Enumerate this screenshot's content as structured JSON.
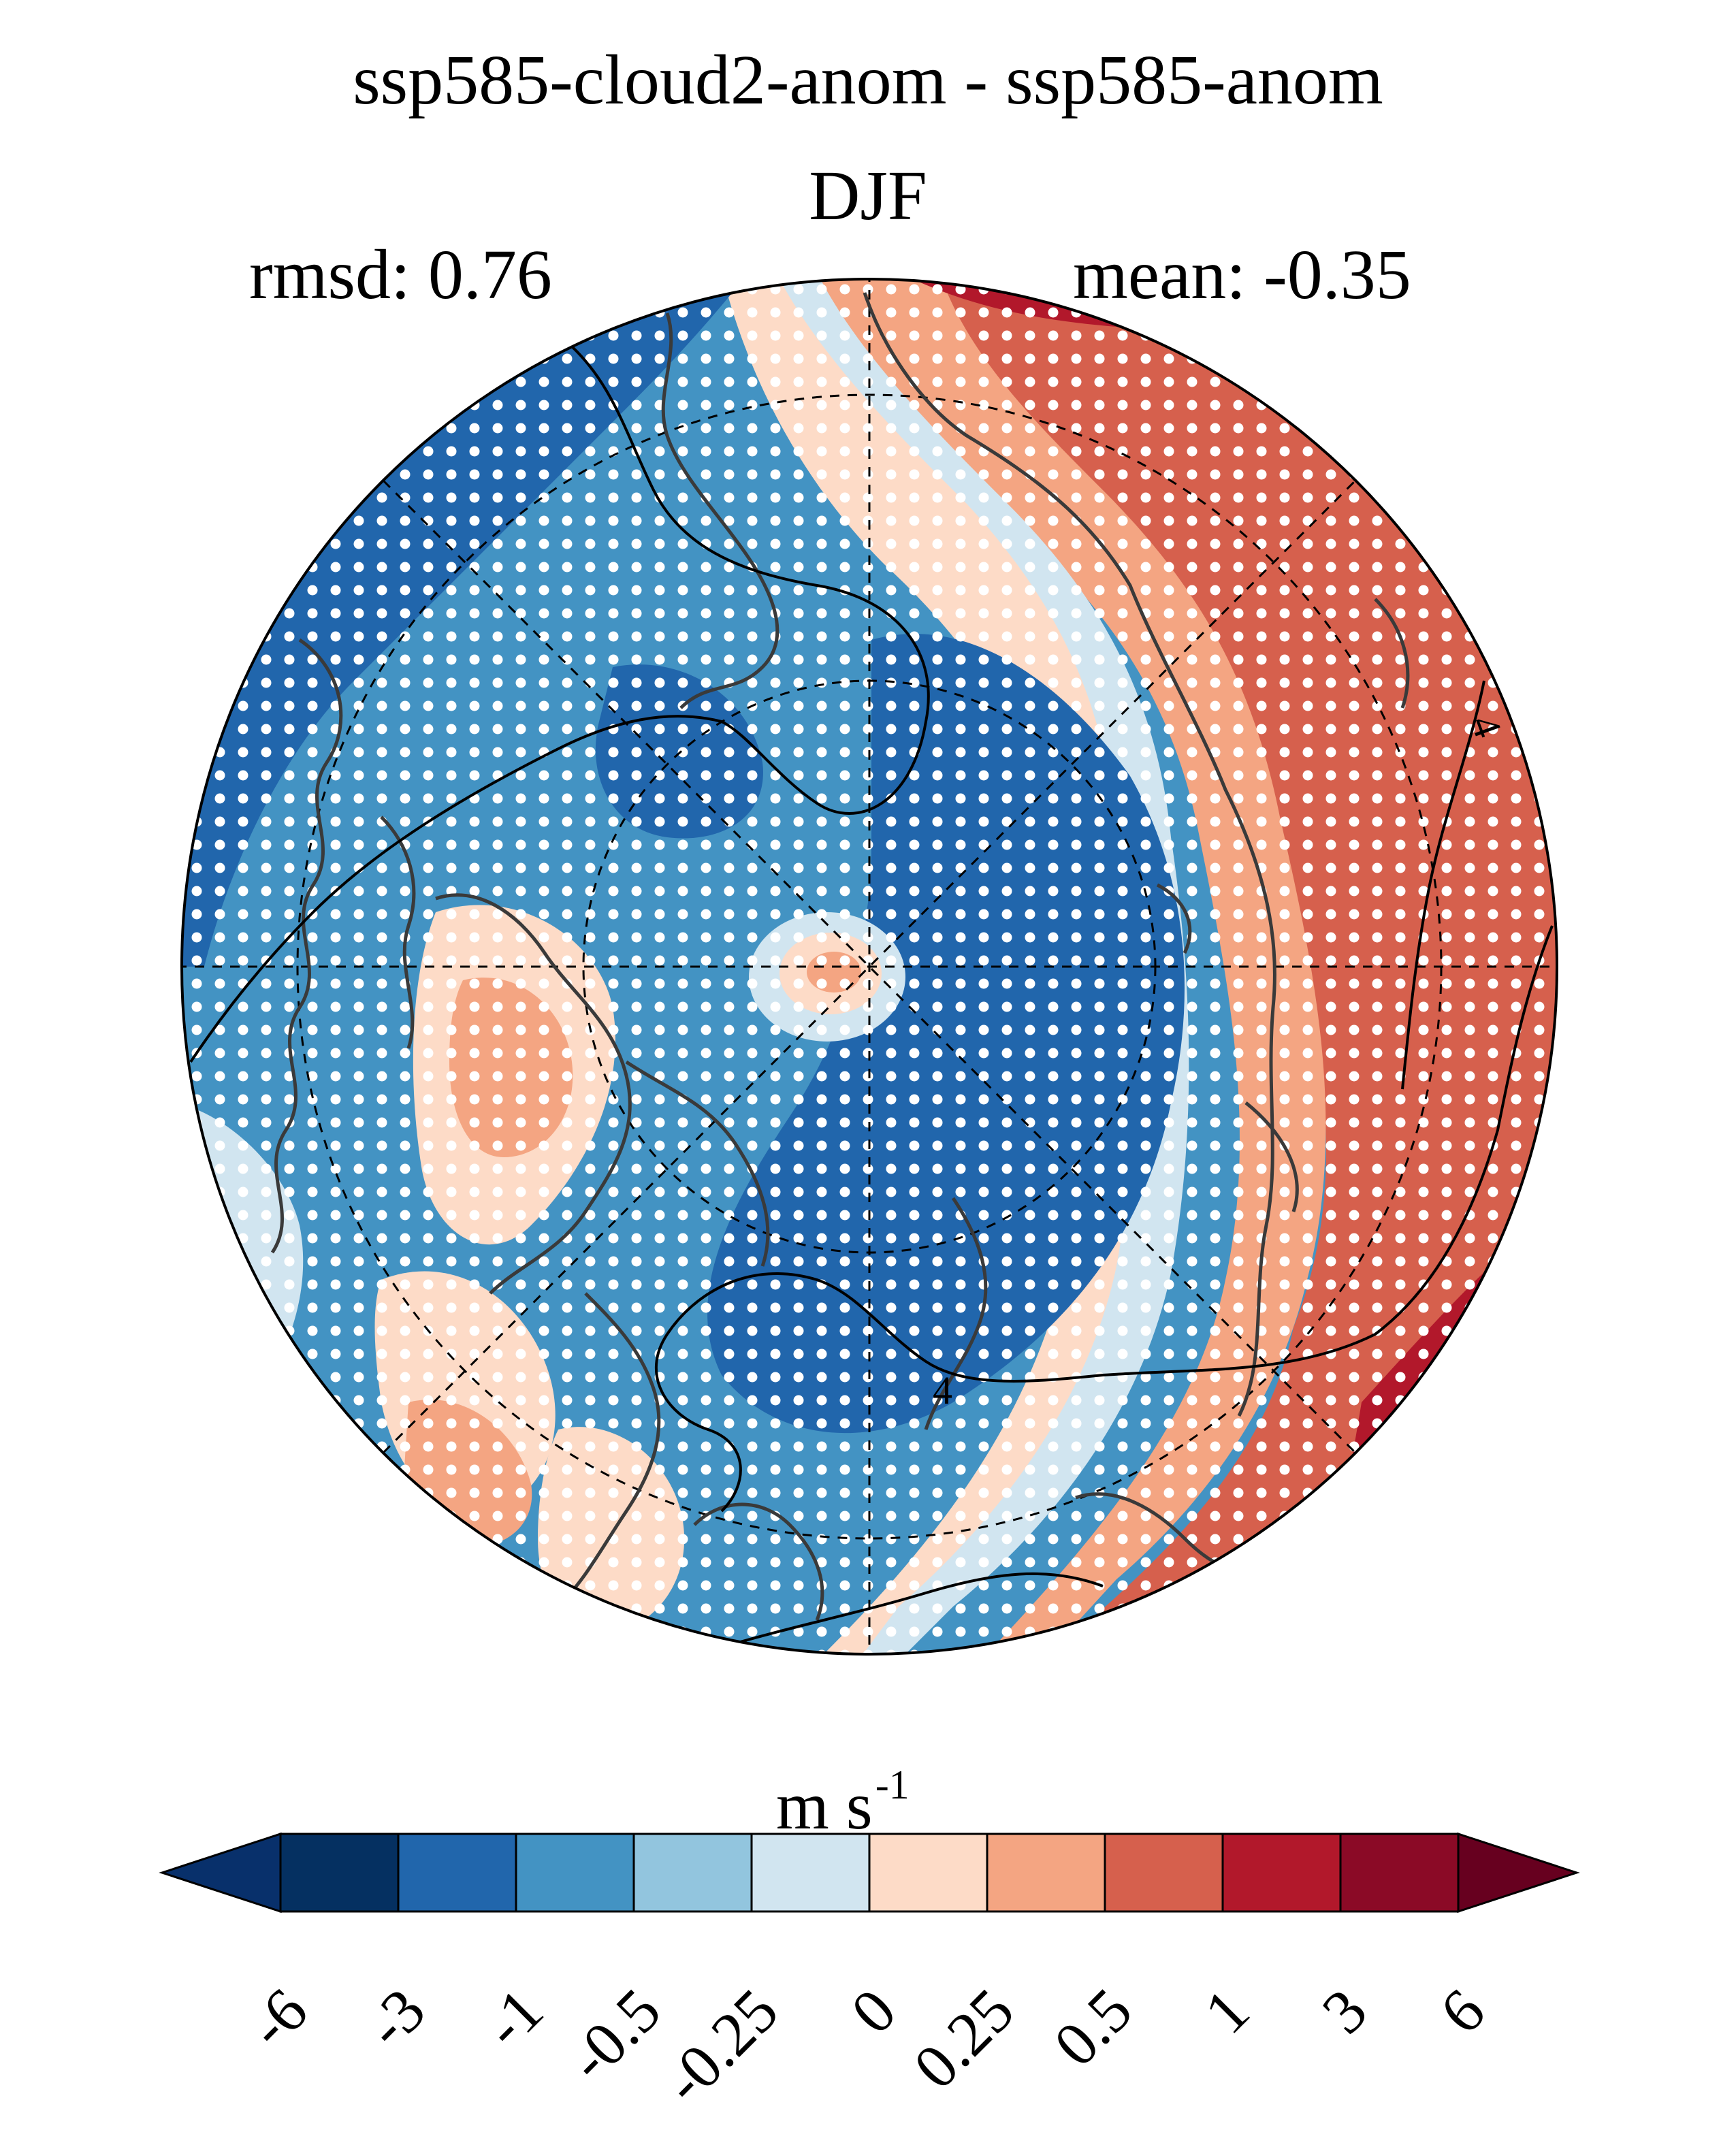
{
  "title": {
    "line1": "ssp585-cloud2-anom - ssp585-anom",
    "line2": "DJF",
    "rmsd": "rmsd: 0.76",
    "mean": "mean: -0.35"
  },
  "contour_labels": [
    "4",
    "4"
  ],
  "colorbar": {
    "units_base": "m s",
    "units_exponent": "-1",
    "ticks": [
      "-6",
      "-3",
      "-1",
      "-0.5",
      "-0.25",
      "0",
      "0.25",
      "0.5",
      "1",
      "3",
      "6"
    ],
    "colors": [
      "#08306b",
      "#053061",
      "#2166ac",
      "#4393c3",
      "#92c5de",
      "#d1e5f0",
      "#fddbc7",
      "#f4a582",
      "#d6604d",
      "#b2182b",
      "#8b0a26",
      "#67001f"
    ],
    "extend": "both"
  }
}
